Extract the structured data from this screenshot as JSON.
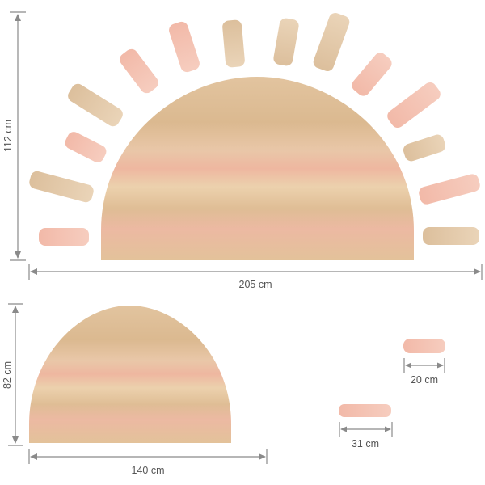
{
  "dimensions": {
    "large_height": "112 cm",
    "large_width": "205 cm",
    "small_height": "82 cm",
    "small_width": "140 cm",
    "ray_short": "20 cm",
    "ray_long": "31 cm"
  },
  "colors": {
    "beige": "#dfc09a",
    "pink": "#efb9a6",
    "sand": "#e8cba5",
    "dimension_line": "#8a8a8a"
  }
}
